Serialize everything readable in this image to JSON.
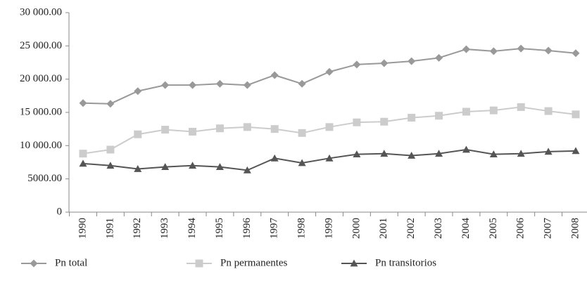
{
  "chart_data": {
    "type": "line",
    "categories": [
      "1990",
      "1991",
      "1992",
      "1993",
      "1994",
      "1995",
      "1996",
      "1997",
      "1998",
      "1999",
      "2000",
      "2001",
      "2002",
      "2003",
      "2004",
      "2005",
      "2006",
      "2007",
      "2008"
    ],
    "series": [
      {
        "name": "Pn total",
        "color": "#999999",
        "marker": "diamond",
        "values": [
          16400,
          16300,
          18200,
          19100,
          19100,
          19300,
          19100,
          20600,
          19300,
          21100,
          22200,
          22400,
          22700,
          23200,
          24500,
          24200,
          24600,
          24300,
          23900
        ]
      },
      {
        "name": "Pn permanentes",
        "color": "#cccccc",
        "marker": "square",
        "values": [
          8800,
          9400,
          11700,
          12400,
          12100,
          12600,
          12800,
          12500,
          11900,
          12800,
          13500,
          13600,
          14200,
          14500,
          15100,
          15300,
          15800,
          15200,
          14700
        ]
      },
      {
        "name": "Pn transitorios",
        "color": "#555555",
        "marker": "triangle",
        "values": [
          7300,
          7000,
          6500,
          6800,
          7000,
          6800,
          6300,
          8100,
          7400,
          8100,
          8700,
          8800,
          8500,
          8800,
          9400,
          8700,
          8800,
          9100,
          9200
        ]
      }
    ],
    "ylim": [
      0,
      30000
    ],
    "yticks": [
      0,
      {
        "value": 5000,
        "label": "5000.00"
      },
      {
        "value": 10000,
        "label": "10 000.00"
      },
      {
        "value": 15000,
        "label": "15 000.00"
      },
      {
        "value": 20000,
        "label": "20 000.00"
      },
      {
        "value": 25000,
        "label": "25 000.00"
      },
      {
        "value": 30000,
        "label": "30 000.00"
      }
    ],
    "legend": "bottom"
  }
}
